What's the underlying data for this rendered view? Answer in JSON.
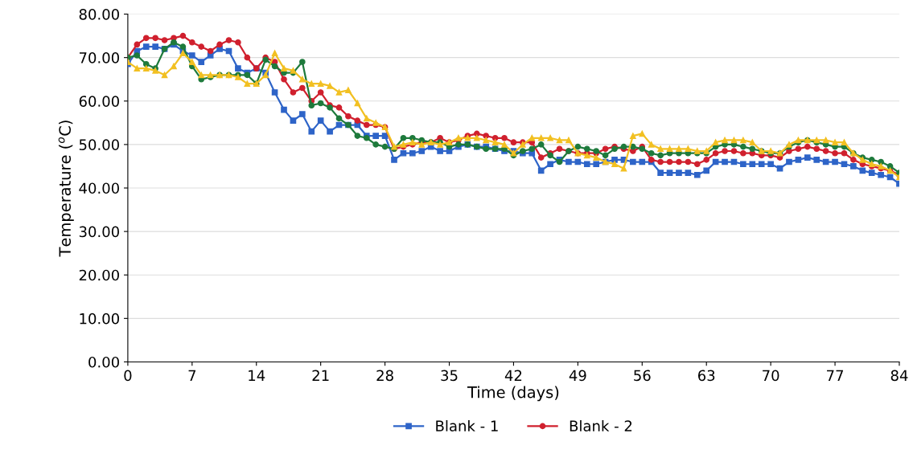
{
  "chart_data": {
    "type": "line",
    "xlabel": "Time (days)",
    "ylabel": "Temperature ($^{o}$C)",
    "x": [
      0,
      1,
      2,
      3,
      4,
      5,
      6,
      7,
      8,
      9,
      10,
      11,
      12,
      13,
      14,
      15,
      16,
      17,
      18,
      19,
      20,
      21,
      22,
      23,
      24,
      25,
      26,
      27,
      28,
      29,
      30,
      31,
      32,
      33,
      34,
      35,
      36,
      37,
      38,
      39,
      40,
      41,
      42,
      43,
      44,
      45,
      46,
      47,
      48,
      49,
      50,
      51,
      52,
      53,
      54,
      55,
      56,
      57,
      58,
      59,
      60,
      61,
      62,
      63,
      64,
      65,
      66,
      67,
      68,
      69,
      70,
      71,
      72,
      73,
      74,
      75,
      76,
      77,
      78,
      79,
      80,
      81,
      82,
      83,
      84
    ],
    "series": [
      {
        "name": "Blank - 1",
        "color": "#2e64c8",
        "marker": "square",
        "values": [
          68.5,
          71.5,
          72.5,
          72.5,
          72,
          73,
          71.5,
          70.5,
          69,
          70.5,
          72,
          71.5,
          67.5,
          66.5,
          67.5,
          66.5,
          62,
          58,
          55.5,
          57,
          53,
          55.5,
          53,
          54.5,
          54.5,
          54.5,
          52,
          52,
          52,
          46.5,
          48,
          48,
          48.5,
          49.5,
          48.5,
          48.5,
          49.5,
          50,
          49.5,
          49.5,
          49,
          48.5,
          48.5,
          48,
          48,
          44,
          45.5,
          46.5,
          46,
          46,
          45.5,
          45.5,
          46,
          46.5,
          46.5,
          46,
          46,
          46,
          43.5,
          43.5,
          43.5,
          43.5,
          43,
          44,
          46,
          46,
          46,
          45.5,
          45.5,
          45.5,
          45.5,
          44.5,
          46,
          46.5,
          47,
          46.5,
          46,
          46,
          45.5,
          45,
          44,
          43.5,
          43,
          42.5,
          41
        ]
      },
      {
        "name": "Blank - 2",
        "color": "#d0202e",
        "marker": "circle",
        "values": [
          70,
          73,
          74.5,
          74.5,
          74,
          74.5,
          75,
          73.5,
          72.5,
          71.5,
          73,
          74,
          73.5,
          70,
          67.5,
          70,
          69,
          65,
          62,
          63,
          60,
          62,
          59,
          58.5,
          56.5,
          55.5,
          54.5,
          54.5,
          54,
          49,
          49.5,
          50,
          50.5,
          50.5,
          51.5,
          50.5,
          51,
          52,
          52.5,
          52,
          51.5,
          51.5,
          50.5,
          50.5,
          50.5,
          47,
          48,
          49,
          48.5,
          48,
          48,
          48,
          49,
          49.5,
          49,
          48.5,
          49.5,
          46.5,
          46,
          46,
          46,
          46,
          45.5,
          46.5,
          48,
          48.5,
          48.5,
          48,
          48,
          47.5,
          47.5,
          47,
          48.5,
          49,
          49.5,
          49,
          48.5,
          48,
          48,
          46.5,
          45.5,
          45,
          44.5,
          44,
          43
        ]
      },
      {
        "color": "#1e7a3c",
        "marker": "circle",
        "values": [
          70,
          70.5,
          68.5,
          67.5,
          72,
          73.5,
          72.5,
          68,
          65,
          65.5,
          66,
          66,
          66,
          66,
          64,
          69.5,
          68,
          66.5,
          66.5,
          69,
          59,
          59.5,
          58.5,
          56,
          54.5,
          52,
          51.5,
          50,
          49.5,
          49,
          51.5,
          51.5,
          51,
          50.5,
          50.5,
          49.5,
          50,
          50,
          49.5,
          49,
          49,
          49,
          47.5,
          48.5,
          49,
          50,
          47.5,
          46,
          48.5,
          49.5,
          49,
          48.5,
          47.5,
          49,
          49.5,
          49.5,
          49,
          48,
          47.5,
          48,
          48,
          48,
          48,
          48,
          49.5,
          50,
          50,
          49.5,
          49,
          48.5,
          48,
          48,
          49.5,
          50.5,
          51,
          50.5,
          50,
          49.5,
          49.5,
          48,
          47,
          46.5,
          46,
          45,
          43.5
        ]
      },
      {
        "color": "#f2c022",
        "marker": "triangle",
        "values": [
          69,
          67.5,
          67.5,
          67,
          66,
          68,
          71,
          69,
          66,
          66,
          66,
          66,
          65.5,
          64,
          64,
          66,
          71,
          67.5,
          67,
          65,
          64,
          64,
          63.5,
          62,
          62.5,
          59.5,
          56,
          55,
          54,
          49.5,
          50,
          50.5,
          50,
          50.5,
          50,
          50.5,
          51.5,
          51.5,
          51.5,
          51,
          50.5,
          50,
          48,
          50,
          51.5,
          51.5,
          51.5,
          51,
          51,
          48,
          47.5,
          47,
          46,
          45.5,
          44.5,
          52,
          52.5,
          50,
          49,
          49,
          49,
          49,
          48.5,
          48.5,
          50.5,
          51,
          51,
          51,
          50.5,
          48.5,
          48.5,
          48,
          50,
          51,
          51,
          51,
          51,
          50.5,
          50.5,
          48,
          46.5,
          45.5,
          45,
          44,
          42.5
        ]
      }
    ],
    "xlim": [
      0,
      84
    ],
    "xticks": [
      0,
      7,
      14,
      21,
      28,
      35,
      42,
      49,
      56,
      63,
      70,
      77,
      84
    ],
    "ylim": [
      0,
      80
    ],
    "yticks": [
      {
        "value": 0,
        "label": "0.00"
      },
      {
        "value": 10,
        "label": "10.00"
      },
      {
        "value": 20,
        "label": "20.00"
      },
      {
        "value": 30,
        "label": "30.00"
      },
      {
        "value": 40,
        "label": "40.00"
      },
      {
        "value": 50,
        "label": "50.00"
      },
      {
        "value": 60,
        "label": "60.00"
      },
      {
        "value": 70,
        "label": "70.00"
      },
      {
        "value": 80,
        "label": "80.00"
      }
    ],
    "grid": "y",
    "legend": "bottom",
    "line_style": "solid"
  }
}
